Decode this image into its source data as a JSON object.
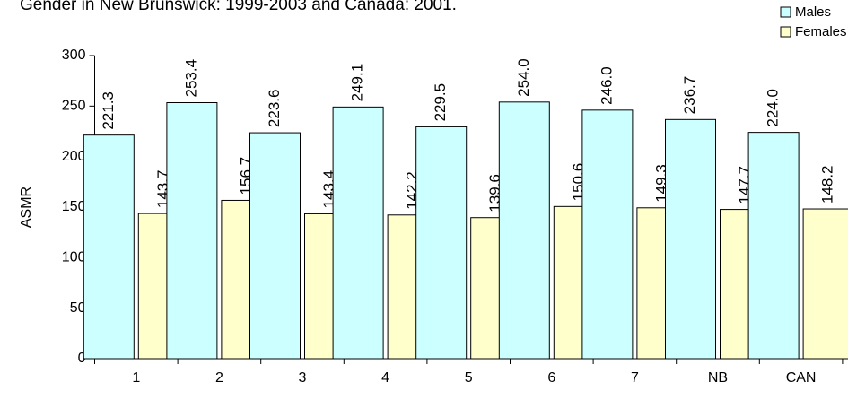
{
  "chart_data": {
    "type": "bar",
    "title": "Gender in New Brunswick: 1999-2003 and Canada: 2001.",
    "ylabel": "ASMR",
    "categories": [
      "1",
      "2",
      "3",
      "4",
      "5",
      "6",
      "7",
      "NB",
      "CAN"
    ],
    "series": [
      {
        "name": "Males",
        "color": "#ccffff",
        "values": [
          221.3,
          253.4,
          223.6,
          249.1,
          229.5,
          254.0,
          246.0,
          236.7,
          224.0
        ],
        "value_labels": [
          "221.3",
          "253.4",
          "223.6",
          "249.1",
          "229.5",
          "254.0",
          "246.0",
          "236.7",
          "224.0"
        ]
      },
      {
        "name": "Females",
        "color": "#ffffcc",
        "values": [
          143.7,
          156.7,
          143.4,
          142.2,
          139.6,
          150.6,
          149.3,
          147.7,
          148.2
        ],
        "value_labels": [
          "143.7",
          "156.7",
          "143.4",
          "142.2",
          "139.6",
          "150.6",
          "149.3",
          "147.7",
          "148.2"
        ]
      }
    ],
    "ylim": [
      0,
      300
    ],
    "yticks": [
      0,
      50,
      100,
      150,
      200,
      250,
      300
    ],
    "legend": "top-right"
  }
}
